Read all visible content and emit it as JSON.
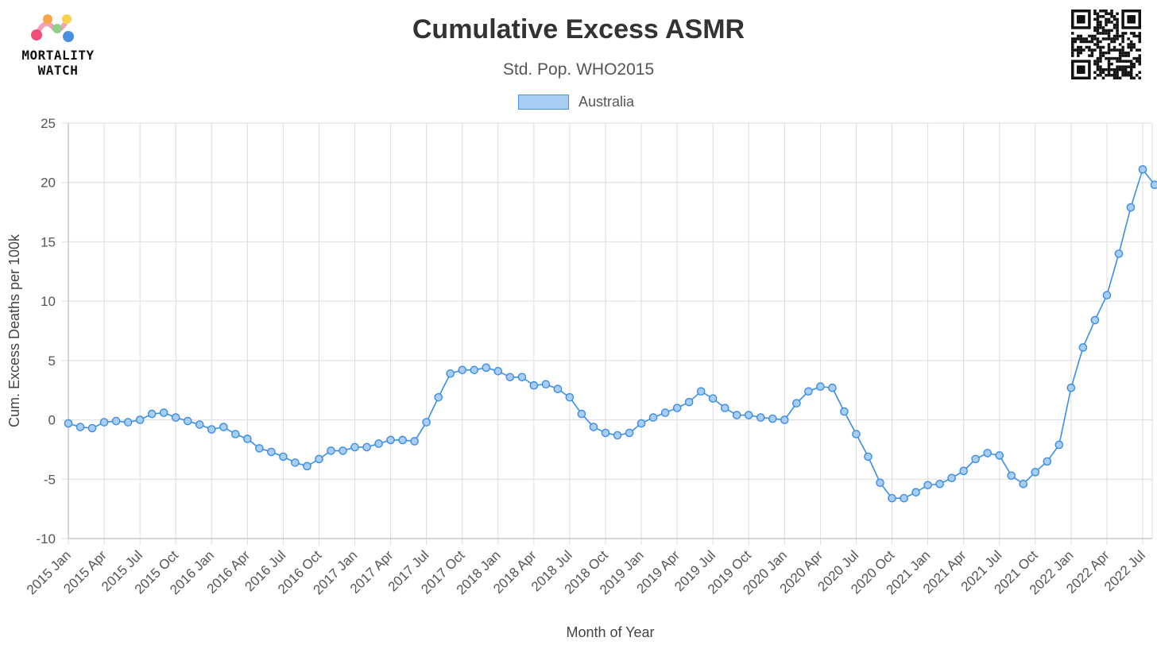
{
  "logo": {
    "line1": "MORTALITY",
    "line2": "WATCH"
  },
  "chart_data": {
    "type": "line",
    "title": "Cumulative Excess ASMR",
    "subtitle": "Std. Pop. WHO2015",
    "xlabel": "Month of Year",
    "ylabel": "Cum. Excess Deaths per 100k",
    "ylim": [
      -10,
      25
    ],
    "yticks": [
      -10,
      -5,
      0,
      5,
      10,
      15,
      20,
      25
    ],
    "grid": true,
    "legend_position": "top-center",
    "x": [
      "2015-01",
      "2015-02",
      "2015-03",
      "2015-04",
      "2015-05",
      "2015-06",
      "2015-07",
      "2015-08",
      "2015-09",
      "2015-10",
      "2015-11",
      "2015-12",
      "2016-01",
      "2016-02",
      "2016-03",
      "2016-04",
      "2016-05",
      "2016-06",
      "2016-07",
      "2016-08",
      "2016-09",
      "2016-10",
      "2016-11",
      "2016-12",
      "2017-01",
      "2017-02",
      "2017-03",
      "2017-04",
      "2017-05",
      "2017-06",
      "2017-07",
      "2017-08",
      "2017-09",
      "2017-10",
      "2017-11",
      "2017-12",
      "2018-01",
      "2018-02",
      "2018-03",
      "2018-04",
      "2018-05",
      "2018-06",
      "2018-07",
      "2018-08",
      "2018-09",
      "2018-10",
      "2018-11",
      "2018-12",
      "2019-01",
      "2019-02",
      "2019-03",
      "2019-04",
      "2019-05",
      "2019-06",
      "2019-07",
      "2019-08",
      "2019-09",
      "2019-10",
      "2019-11",
      "2019-12",
      "2020-01",
      "2020-02",
      "2020-03",
      "2020-04",
      "2020-05",
      "2020-06",
      "2020-07",
      "2020-08",
      "2020-09",
      "2020-10",
      "2020-11",
      "2020-12",
      "2021-01",
      "2021-02",
      "2021-03",
      "2021-04",
      "2021-05",
      "2021-06",
      "2021-07",
      "2021-08",
      "2021-09",
      "2021-10",
      "2021-11",
      "2021-12",
      "2022-01",
      "2022-02",
      "2022-03",
      "2022-04",
      "2022-05",
      "2022-06",
      "2022-07",
      "2022-08"
    ],
    "xtick_labels": [
      "2015 Jan",
      "2015 Apr",
      "2015 Jul",
      "2015 Oct",
      "2016 Jan",
      "2016 Apr",
      "2016 Jul",
      "2016 Oct",
      "2017 Jan",
      "2017 Apr",
      "2017 Jul",
      "2017 Oct",
      "2018 Jan",
      "2018 Apr",
      "2018 Jul",
      "2018 Oct",
      "2019 Jan",
      "2019 Apr",
      "2019 Jul",
      "2019 Oct",
      "2020 Jan",
      "2020 Apr",
      "2020 Jul",
      "2020 Oct",
      "2021 Jan",
      "2021 Apr",
      "2021 Jul",
      "2021 Oct",
      "2022 Jan",
      "2022 Apr",
      "2022 Jul"
    ],
    "series": [
      {
        "name": "Australia",
        "color": "#3a8ee6",
        "fill": "#a9cdf3",
        "values": [
          -0.3,
          -0.6,
          -0.7,
          -0.2,
          -0.1,
          -0.2,
          0.0,
          0.5,
          0.6,
          0.2,
          -0.1,
          -0.4,
          -0.8,
          -0.6,
          -1.2,
          -1.6,
          -2.4,
          -2.7,
          -3.1,
          -3.6,
          -3.9,
          -3.3,
          -2.6,
          -2.6,
          -2.3,
          -2.3,
          -2.0,
          -1.7,
          -1.7,
          -1.8,
          -0.2,
          1.9,
          3.9,
          4.2,
          4.2,
          4.4,
          4.1,
          3.6,
          3.6,
          2.9,
          3.0,
          2.6,
          1.9,
          0.5,
          -0.6,
          -1.1,
          -1.3,
          -1.1,
          -0.3,
          0.2,
          0.6,
          1.0,
          1.5,
          2.4,
          1.8,
          1.0,
          0.4,
          0.4,
          0.2,
          0.1,
          0.0,
          1.4,
          2.4,
          2.8,
          2.7,
          0.7,
          -1.2,
          -3.1,
          -5.3,
          -6.6,
          -6.6,
          -6.1,
          -5.5,
          -5.4,
          -4.9,
          -4.3,
          -3.3,
          -2.8,
          -3.0,
          -4.7,
          -5.4,
          -4.4,
          -3.5,
          -2.1,
          2.7,
          6.1,
          8.4,
          10.5,
          14.0,
          17.9,
          21.1,
          19.8
        ]
      }
    ]
  }
}
